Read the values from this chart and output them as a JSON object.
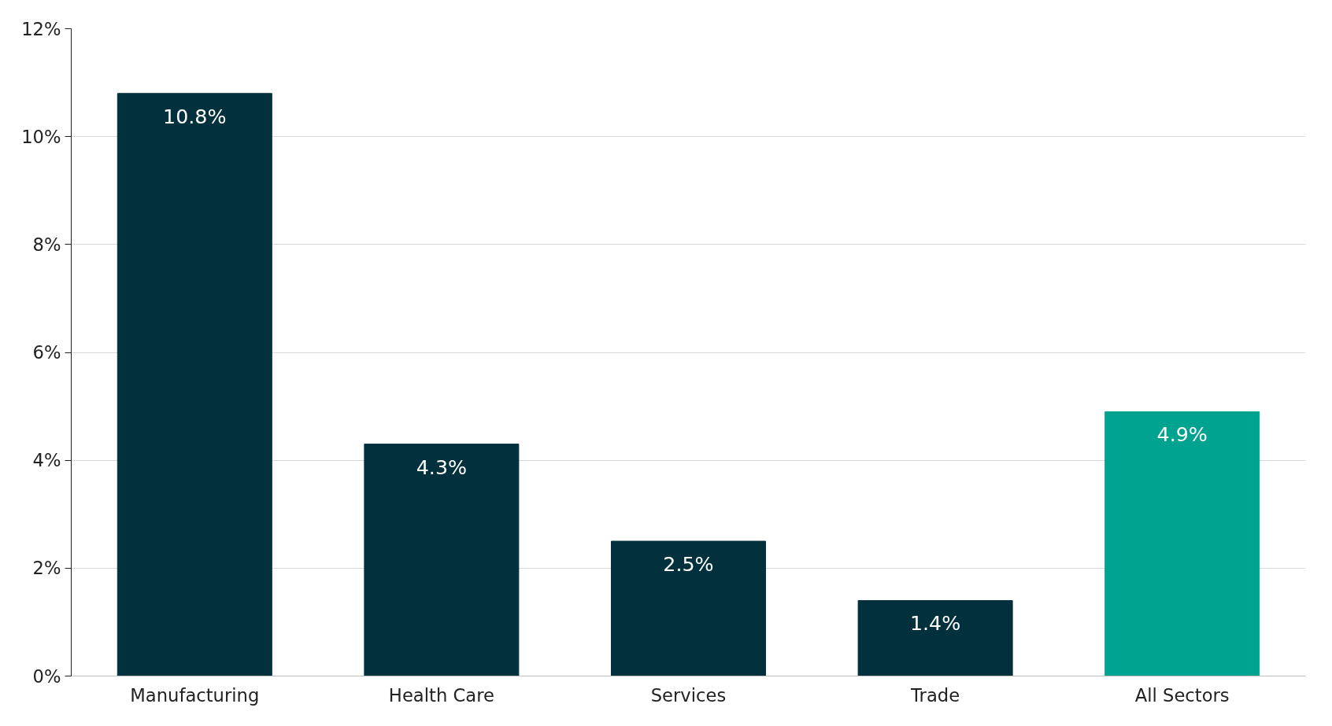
{
  "chart_data": {
    "type": "bar",
    "categories": [
      "Manufacturing",
      "Health Care",
      "Services",
      "Trade",
      "All Sectors"
    ],
    "values": [
      10.8,
      4.3,
      2.5,
      1.4,
      4.9
    ],
    "colors": [
      "#02303c",
      "#02303c",
      "#02303c",
      "#02303c",
      "#00a38f"
    ],
    "value_labels": [
      "10.8%",
      "4.3%",
      "2.5%",
      "1.4%",
      "4.9%"
    ],
    "ylim": [
      0,
      12
    ],
    "yticks": [
      {
        "value": 0,
        "label": "0%"
      },
      {
        "value": 2,
        "label": "2%"
      },
      {
        "value": 4,
        "label": "4%"
      },
      {
        "value": 6,
        "label": "6%"
      },
      {
        "value": 8,
        "label": "8%"
      },
      {
        "value": 10,
        "label": "10%"
      },
      {
        "value": 12,
        "label": "12%"
      }
    ],
    "grid": "y"
  }
}
